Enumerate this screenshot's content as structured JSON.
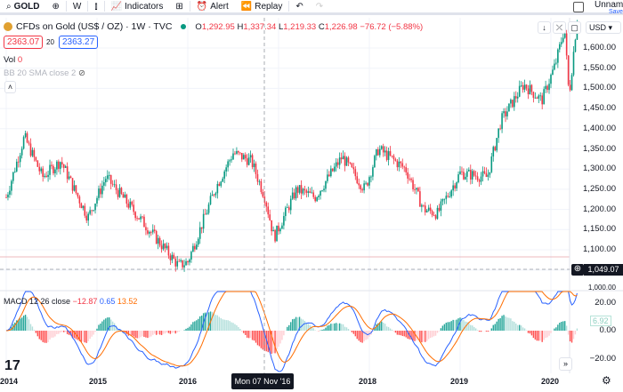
{
  "toolbar": {
    "symbol": "GOLD",
    "interval": "W",
    "indicators": "Indicators",
    "alert": "Alert",
    "replay": "Replay",
    "layout_name": "Unnam",
    "save": "Save"
  },
  "legend": {
    "title": "CFDs on Gold (US$ / OZ) · 1W · TVC",
    "o_label": "O",
    "o": "1,292.95",
    "h_label": "H",
    "h": "1,337.34",
    "l_label": "L",
    "l": "1,219.33",
    "c_label": "C",
    "c": "1,226.98",
    "change": "−76.72 (−5.88%)",
    "sell": "2363.07",
    "spread": "20",
    "buy": "2363.27",
    "vol_label": "Vol",
    "vol": "0",
    "bb": "BB 20 SMA close 2"
  },
  "currency": "USD",
  "price_axis": [
    "1,600.00",
    "1,550.00",
    "1,500.00",
    "1,450.00",
    "1,400.00",
    "1,350.00",
    "1,300.00",
    "1,250.00",
    "1,200.00",
    "1,150.00",
    "1,100.00"
  ],
  "crosshair": {
    "price": "1,049.07",
    "date": "Mon 07 Nov '16"
  },
  "macd": {
    "label": "MACD 12 26 close",
    "hist": "−12.87",
    "macd": "0.65",
    "signal": "13.52",
    "axis": [
      "20.00",
      "0.00",
      "−20.00"
    ],
    "last": "6.92"
  },
  "time_axis": [
    "2014",
    "2015",
    "2016",
    "2018",
    "2019",
    "2020"
  ],
  "colors": {
    "up": "#089981",
    "down": "#f23645",
    "macd": "#2962ff",
    "signal": "#ff6d00"
  },
  "chart_data": {
    "type": "candlestick",
    "interval": "1W",
    "anchors": [
      [
        2014.0,
        1230
      ],
      [
        2014.2,
        1380
      ],
      [
        2014.4,
        1280
      ],
      [
        2014.6,
        1320
      ],
      [
        2014.9,
        1180
      ],
      [
        2015.1,
        1280
      ],
      [
        2015.5,
        1170
      ],
      [
        2015.9,
        1060
      ],
      [
        2016.0,
        1070
      ],
      [
        2016.3,
        1250
      ],
      [
        2016.5,
        1340
      ],
      [
        2016.7,
        1320
      ],
      [
        2016.85,
        1230
      ],
      [
        2016.95,
        1130
      ],
      [
        2017.2,
        1250
      ],
      [
        2017.4,
        1230
      ],
      [
        2017.7,
        1330
      ],
      [
        2017.95,
        1250
      ],
      [
        2018.1,
        1350
      ],
      [
        2018.4,
        1300
      ],
      [
        2018.6,
        1200
      ],
      [
        2018.75,
        1190
      ],
      [
        2019.0,
        1290
      ],
      [
        2019.3,
        1280
      ],
      [
        2019.45,
        1420
      ],
      [
        2019.7,
        1510
      ],
      [
        2019.9,
        1470
      ],
      [
        2020.05,
        1560
      ],
      [
        2020.15,
        1650
      ],
      [
        2020.2,
        1480
      ],
      [
        2020.3,
        1700
      ]
    ]
  }
}
